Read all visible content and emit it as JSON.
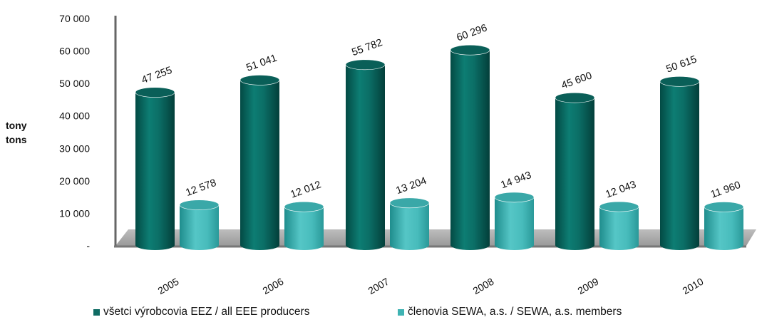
{
  "chart_data": {
    "type": "bar",
    "categories": [
      "2005",
      "2006",
      "2007",
      "2008",
      "2009",
      "2010"
    ],
    "series": [
      {
        "name": "všetci výrobcovia EEZ / all EEE producers",
        "values": [
          47255,
          51041,
          55782,
          60296,
          45600,
          50615
        ],
        "labels": [
          "47 255",
          "51 041",
          "55 782",
          "60 296",
          "45 600",
          "50 615"
        ],
        "color": "#0f6b63"
      },
      {
        "name": "členovia SEWA, a.s. / SEWA, a.s. members",
        "values": [
          12578,
          12012,
          13204,
          14943,
          12043,
          11960
        ],
        "labels": [
          "12 578",
          "12 012",
          "13 204",
          "14 943",
          "12 043",
          "11 960"
        ],
        "color": "#3fb3b3"
      }
    ],
    "yticks": [
      {
        "value": 0,
        "label": "-"
      },
      {
        "value": 10000,
        "label": "10 000"
      },
      {
        "value": 20000,
        "label": "20 000"
      },
      {
        "value": 30000,
        "label": "30 000"
      },
      {
        "value": 40000,
        "label": "40 000"
      },
      {
        "value": 50000,
        "label": "50 000"
      },
      {
        "value": 60000,
        "label": "60 000"
      },
      {
        "value": 70000,
        "label": "70 000"
      }
    ],
    "ylim": [
      0,
      70000
    ],
    "ylabel_lines": [
      "tony",
      "tons"
    ],
    "xlabel": "",
    "title": "",
    "grid": false,
    "legend_position": "bottom"
  }
}
